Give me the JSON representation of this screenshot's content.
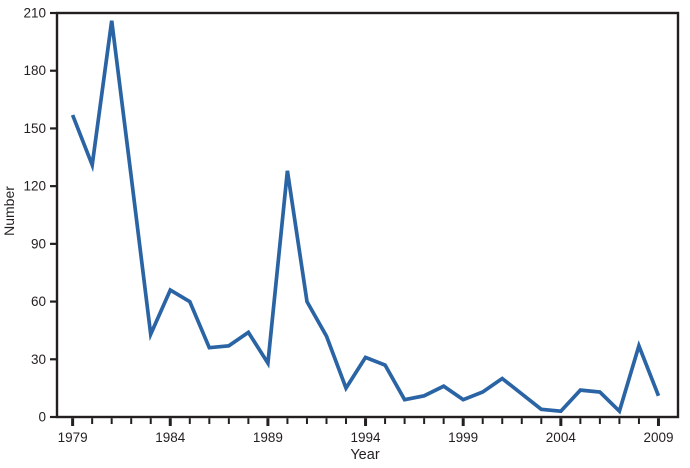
{
  "figure": {
    "background": "#ffffff",
    "line_color": "#2A64A4",
    "axis_color": "#231F20",
    "text_color": "#231F20"
  },
  "chart_data": {
    "type": "line",
    "title": "",
    "xlabel": "Year",
    "ylabel": "Number",
    "x": [
      1979,
      1980,
      1981,
      1982,
      1983,
      1984,
      1985,
      1986,
      1987,
      1988,
      1989,
      1990,
      1991,
      1992,
      1993,
      1994,
      1995,
      1996,
      1997,
      1998,
      1999,
      2000,
      2001,
      2002,
      2003,
      2004,
      2005,
      2006,
      2007,
      2008,
      2009
    ],
    "values": [
      157,
      131,
      206,
      125,
      43,
      66,
      60,
      36,
      37,
      44,
      28,
      128,
      60,
      42,
      15,
      31,
      27,
      9,
      11,
      16,
      9,
      13,
      20,
      12,
      4,
      3,
      14,
      13,
      3,
      37,
      11
    ],
    "xlim": [
      1978.2,
      2010.0
    ],
    "ylim": [
      0,
      210
    ],
    "yticks": [
      0,
      30,
      60,
      90,
      120,
      150,
      180,
      210
    ],
    "xticks_major": [
      1979,
      1984,
      1989,
      1994,
      1999,
      2004,
      2009
    ],
    "xticks_minor_every_year": 1,
    "grid": false,
    "legend": "none"
  }
}
